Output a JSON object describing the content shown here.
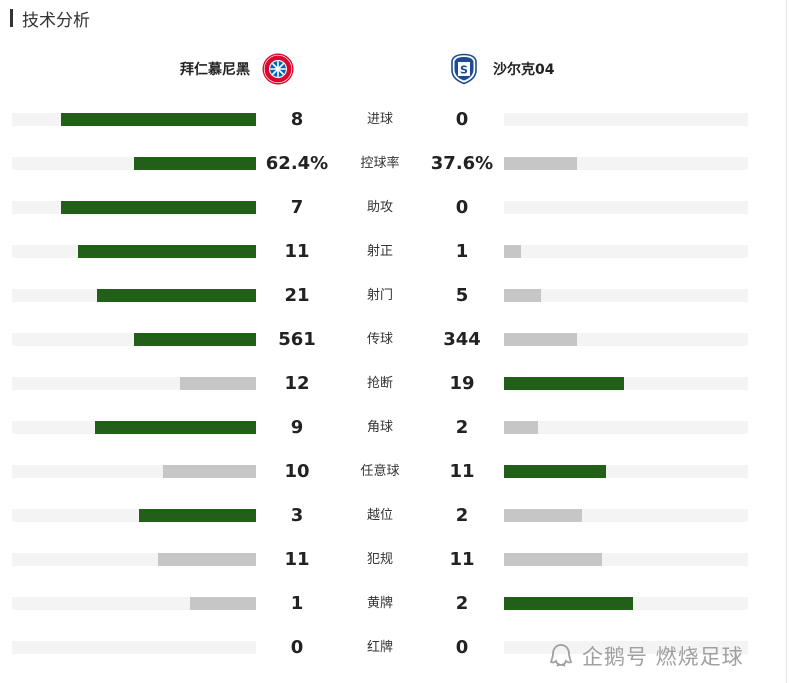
{
  "section_title": "技术分析",
  "home_team": {
    "name": "拜仁慕尼黑",
    "crest": "fc-bayern-crest-icon"
  },
  "away_team": {
    "name": "沙尔克04",
    "crest": "schalke-04-crest-icon"
  },
  "colors": {
    "leader": "#226019",
    "trailer": "#c6c6c6",
    "track": "#f4f4f4"
  },
  "stats": [
    {
      "label": "进球",
      "home": "8",
      "away": "0",
      "home_bar": 0.8,
      "away_bar": 0.0,
      "leader": "home"
    },
    {
      "label": "控球率",
      "home": "62.4%",
      "away": "37.6%",
      "home_bar": 0.5,
      "away_bar": 0.3,
      "leader": "home"
    },
    {
      "label": "助攻",
      "home": "7",
      "away": "0",
      "home_bar": 0.8,
      "away_bar": 0.0,
      "leader": "home"
    },
    {
      "label": "射正",
      "home": "11",
      "away": "1",
      "home_bar": 0.73,
      "away_bar": 0.07,
      "leader": "home"
    },
    {
      "label": "射门",
      "home": "21",
      "away": "5",
      "home_bar": 0.65,
      "away_bar": 0.15,
      "leader": "home"
    },
    {
      "label": "传球",
      "home": "561",
      "away": "344",
      "home_bar": 0.5,
      "away_bar": 0.3,
      "leader": "home"
    },
    {
      "label": "抢断",
      "home": "12",
      "away": "19",
      "home_bar": 0.31,
      "away_bar": 0.49,
      "leader": "away"
    },
    {
      "label": "角球",
      "home": "9",
      "away": "2",
      "home_bar": 0.66,
      "away_bar": 0.14,
      "leader": "home"
    },
    {
      "label": "任意球",
      "home": "10",
      "away": "11",
      "home_bar": 0.38,
      "away_bar": 0.42,
      "leader": "away"
    },
    {
      "label": "越位",
      "home": "3",
      "away": "2",
      "home_bar": 0.48,
      "away_bar": 0.32,
      "leader": "home"
    },
    {
      "label": "犯规",
      "home": "11",
      "away": "11",
      "home_bar": 0.4,
      "away_bar": 0.4,
      "leader": "none"
    },
    {
      "label": "黄牌",
      "home": "1",
      "away": "2",
      "home_bar": 0.27,
      "away_bar": 0.53,
      "leader": "away"
    },
    {
      "label": "红牌",
      "home": "0",
      "away": "0",
      "home_bar": 0.0,
      "away_bar": 0.0,
      "leader": "none"
    }
  ],
  "watermark": {
    "text": "企鹅号 燃烧足球",
    "icon": "penguin-logo-icon"
  }
}
